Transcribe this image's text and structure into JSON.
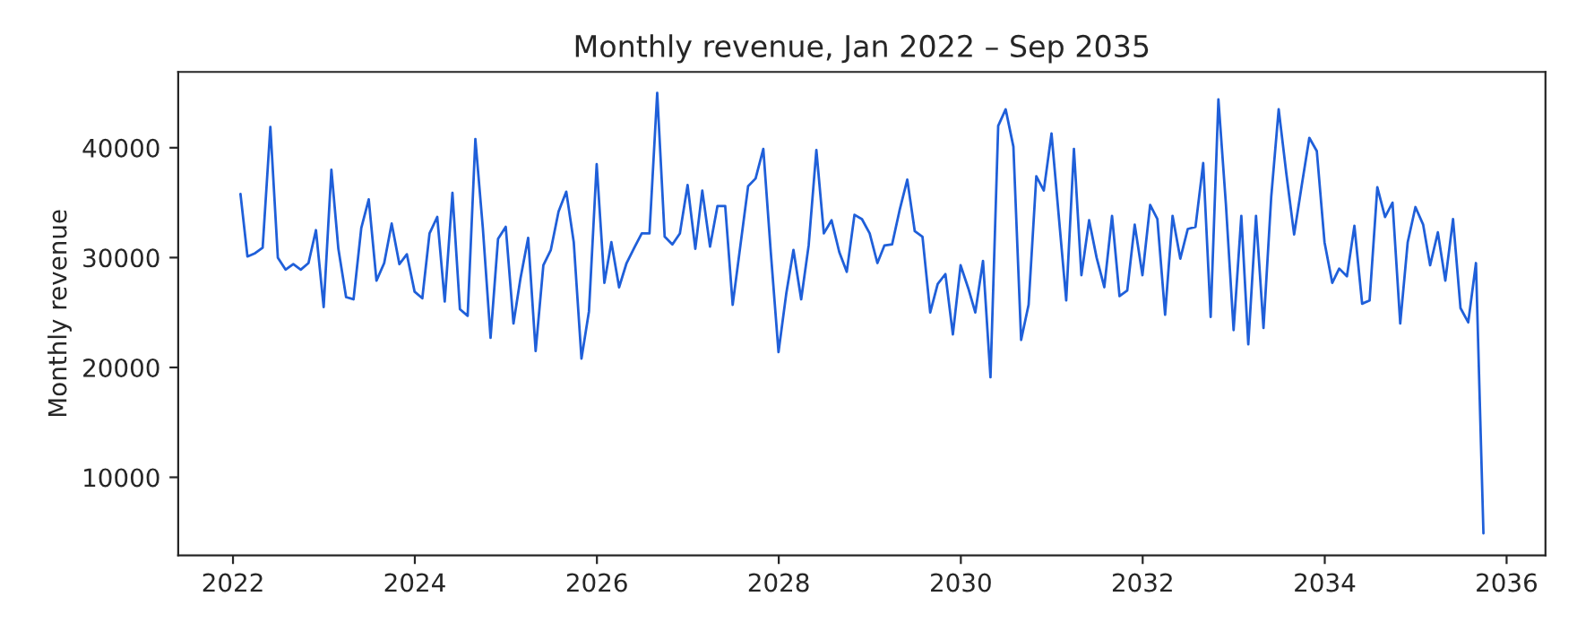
{
  "chart_data": {
    "type": "line",
    "title": "Monthly revenue, Jan 2022 – Sep 2035",
    "ylabel": "Monthly revenue",
    "x": [
      "2022-01-31",
      "2022-02-28",
      "2022-03-31",
      "2022-04-30",
      "2022-05-31",
      "2022-06-30",
      "2022-07-31",
      "2022-08-31",
      "2022-09-30",
      "2022-10-31",
      "2022-11-30",
      "2022-12-31",
      "2023-01-31",
      "2023-02-28",
      "2023-03-31",
      "2023-04-30",
      "2023-05-31",
      "2023-06-30",
      "2023-07-31",
      "2023-08-31",
      "2023-09-30",
      "2023-10-31",
      "2023-11-30",
      "2023-12-31",
      "2024-01-31",
      "2024-02-29",
      "2024-03-31",
      "2024-04-30",
      "2024-05-31",
      "2024-06-30",
      "2024-07-31",
      "2024-08-31",
      "2024-09-30",
      "2024-10-31",
      "2024-11-30",
      "2024-12-31",
      "2025-01-31",
      "2025-02-28",
      "2025-03-31",
      "2025-04-30",
      "2025-05-31",
      "2025-06-30",
      "2025-07-31",
      "2025-08-31",
      "2025-09-30",
      "2025-10-31",
      "2025-11-30",
      "2025-12-31",
      "2026-01-31",
      "2026-02-28",
      "2026-03-31",
      "2026-04-30",
      "2026-05-31",
      "2026-06-30",
      "2026-07-31",
      "2026-08-31",
      "2026-09-30",
      "2026-10-31",
      "2026-11-30",
      "2026-12-31",
      "2027-01-31",
      "2027-02-28",
      "2027-03-31",
      "2027-04-30",
      "2027-05-31",
      "2027-06-30",
      "2027-07-31",
      "2027-08-31",
      "2027-09-30",
      "2027-10-31",
      "2027-11-30",
      "2027-12-31",
      "2028-01-31",
      "2028-02-29",
      "2028-03-31",
      "2028-04-30",
      "2028-05-31",
      "2028-06-30",
      "2028-07-31",
      "2028-08-31",
      "2028-09-30",
      "2028-10-31",
      "2028-11-30",
      "2028-12-31",
      "2029-01-31",
      "2029-02-28",
      "2029-03-31",
      "2029-04-30",
      "2029-05-31",
      "2029-06-30",
      "2029-07-31",
      "2029-08-31",
      "2029-09-30",
      "2029-10-31",
      "2029-11-30",
      "2029-12-31",
      "2030-01-31",
      "2030-02-28",
      "2030-03-31",
      "2030-04-30",
      "2030-05-31",
      "2030-06-30",
      "2030-07-31",
      "2030-08-31",
      "2030-09-30",
      "2030-10-31",
      "2030-11-30",
      "2030-12-31",
      "2031-01-31",
      "2031-02-28",
      "2031-03-31",
      "2031-04-30",
      "2031-05-31",
      "2031-06-30",
      "2031-07-31",
      "2031-08-31",
      "2031-09-30",
      "2031-10-31",
      "2031-11-30",
      "2031-12-31",
      "2032-01-31",
      "2032-02-29",
      "2032-03-31",
      "2032-04-30",
      "2032-05-31",
      "2032-06-30",
      "2032-07-31",
      "2032-08-31",
      "2032-09-30",
      "2032-10-31",
      "2032-11-30",
      "2032-12-31",
      "2033-01-31",
      "2033-02-28",
      "2033-03-31",
      "2033-04-30",
      "2033-05-31",
      "2033-06-30",
      "2033-07-31",
      "2033-08-31",
      "2033-09-30",
      "2033-10-31",
      "2033-11-30",
      "2033-12-31",
      "2034-01-31",
      "2034-02-28",
      "2034-03-31",
      "2034-04-30",
      "2034-05-31",
      "2034-06-30",
      "2034-07-31",
      "2034-08-31",
      "2034-09-30",
      "2034-10-31",
      "2034-11-30",
      "2034-12-31",
      "2035-01-31",
      "2035-02-28",
      "2035-03-31",
      "2035-04-30",
      "2035-05-31",
      "2035-06-30",
      "2035-07-31",
      "2035-08-31",
      "2035-09-30"
    ],
    "series": [
      {
        "color": "#1f5fd9",
        "values": [
          35800,
          30100,
          30400,
          30900,
          41900,
          30000,
          28900,
          29400,
          28900,
          29500,
          32500,
          25500,
          38000,
          30800,
          26400,
          26200,
          32700,
          35300,
          27900,
          29500,
          33100,
          29400,
          30300,
          26900,
          26300,
          32200,
          33700,
          26000,
          35900,
          25300,
          24700,
          40800,
          32700,
          22700,
          31700,
          32800,
          24000,
          28100,
          31800,
          21500,
          29300,
          30700,
          34200,
          36000,
          31400,
          20800,
          25100,
          38500,
          27700,
          31400,
          27300,
          29500,
          30900,
          32200,
          32200,
          45000,
          31900,
          31200,
          32200,
          36600,
          30800,
          36100,
          31000,
          34700,
          34700,
          25700,
          31100,
          36500,
          37200,
          39900,
          30500,
          21400,
          26700,
          30700,
          26200,
          31100,
          39800,
          32200,
          33400,
          30500,
          28700,
          33900,
          33500,
          32200,
          29500,
          31100,
          31200,
          34300,
          37100,
          32400,
          31900,
          25000,
          27600,
          28500,
          23000,
          29300,
          27200,
          25000,
          29700,
          19100,
          42000,
          43500,
          40100,
          22500,
          25700,
          37400,
          36100,
          41300,
          33300,
          26100,
          39900,
          28400,
          33400,
          30000,
          27300,
          33800,
          26500,
          27000,
          33000,
          28400,
          34800,
          33500,
          24800,
          33800,
          29900,
          32600,
          32800,
          38600,
          24600,
          44400,
          34900,
          23400,
          33800,
          22100,
          33800,
          23600,
          35500,
          43500,
          37600,
          32100,
          36500,
          40900,
          39700,
          31400,
          27700,
          29000,
          28300,
          32900,
          25800,
          26100,
          36400,
          33700,
          35000,
          24000,
          31400,
          34600,
          33000,
          29300,
          32300,
          27900,
          33500,
          25400,
          24100,
          29500,
          4900
        ]
      }
    ],
    "xlim": [
      "2021-05-26",
      "2036-06-05"
    ],
    "xticks": [
      {
        "value": "2022-01-01",
        "label": "2022"
      },
      {
        "value": "2024-01-01",
        "label": "2024"
      },
      {
        "value": "2026-01-01",
        "label": "2026"
      },
      {
        "value": "2028-01-01",
        "label": "2028"
      },
      {
        "value": "2030-01-01",
        "label": "2030"
      },
      {
        "value": "2032-01-01",
        "label": "2032"
      },
      {
        "value": "2034-01-01",
        "label": "2034"
      },
      {
        "value": "2036-01-01",
        "label": "2036"
      }
    ],
    "ylim": [
      2900,
      46900
    ],
    "yticks": [
      10000,
      20000,
      30000,
      40000
    ],
    "grid": false
  }
}
